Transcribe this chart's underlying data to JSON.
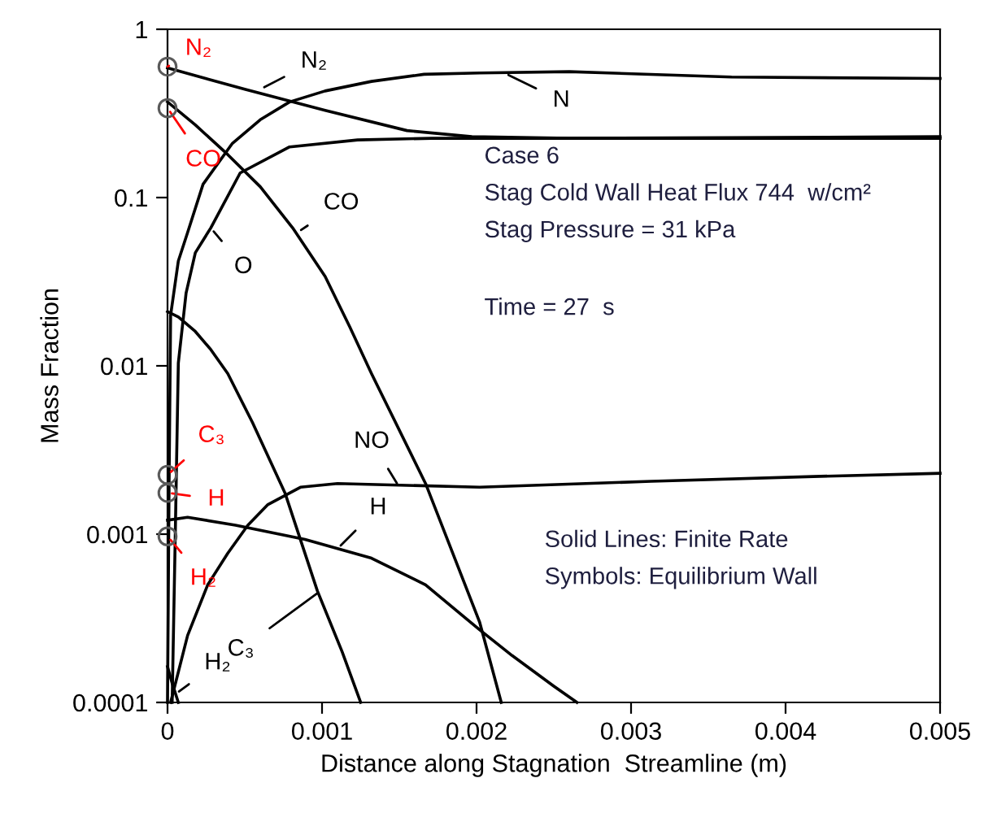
{
  "chart_data": {
    "type": "line",
    "xlabel": "Distance along Stagnation  Streamline (m)",
    "ylabel": "Mass Fraction",
    "log": "y",
    "xlim": [
      0,
      0.005
    ],
    "ylim": [
      0.0001,
      1
    ],
    "xticks": [
      0,
      0.001,
      0.002,
      0.003,
      0.004,
      0.005
    ],
    "yticks": [
      0.0001,
      0.001,
      0.01,
      0.1,
      1
    ],
    "grid": false,
    "legend": false,
    "marker": "none",
    "line_style": "solid",
    "series": [
      {
        "color": "#000000",
        "x": [
          0,
          1e-05,
          2e-05,
          7e-05,
          0.00013,
          0.00023,
          0.00042,
          0.0006,
          0.00079,
          0.00102,
          0.00132,
          0.00166,
          0.00202,
          0.0026,
          0.00365,
          0.005
        ],
        "values": [
          0.0001,
          0.0019,
          0.02,
          0.042,
          0.062,
          0.12,
          0.21,
          0.29,
          0.37,
          0.43,
          0.49,
          0.54,
          0.55,
          0.56,
          0.52,
          0.51
        ]
      },
      {
        "color": "#000000",
        "x": [
          3e-05,
          5e-05,
          7e-05,
          0.00012,
          0.00018,
          0.00028,
          0.00047,
          0.00079,
          0.00123,
          0.00171,
          0.005
        ],
        "values": [
          0.0001,
          0.00097,
          0.0104,
          0.027,
          0.047,
          0.066,
          0.14,
          0.2,
          0.22,
          0.225,
          0.225
        ]
      },
      {
        "color": "#000000",
        "x": [
          0,
          0.0005,
          0.00102,
          0.00155,
          0.00197,
          0.0026,
          0.005
        ],
        "values": [
          0.59,
          0.44,
          0.33,
          0.25,
          0.23,
          0.225,
          0.23
        ]
      },
      {
        "color": "#000000",
        "x": [
          0,
          0.00018,
          0.00039,
          0.0006,
          0.00081,
          0.00102,
          0.00118,
          0.00132,
          0.00167,
          0.00202,
          0.00216
        ],
        "values": [
          0.37,
          0.27,
          0.18,
          0.116,
          0.066,
          0.034,
          0.017,
          0.009,
          0.002,
          0.0003,
          0.0001
        ]
      },
      {
        "color": "#000000",
        "x": [
          0,
          7e-05,
          0.00018,
          0.00028,
          0.00039,
          0.00055,
          0.00076,
          0.00097,
          0.00113,
          0.00125
        ],
        "values": [
          0.021,
          0.0195,
          0.016,
          0.0125,
          0.009,
          0.0046,
          0.00176,
          0.00046,
          0.0002,
          0.0001
        ]
      },
      {
        "color": "#000000",
        "x": [
          0,
          0.00013,
          0.00044,
          0.00089,
          0.00132,
          0.00167,
          0.00202,
          0.00223,
          0.0025,
          0.00265
        ],
        "values": [
          0.00121,
          0.00126,
          0.00113,
          0.00093,
          0.00072,
          0.0005,
          0.00027,
          0.00019,
          0.000125,
          0.0001
        ]
      },
      {
        "color": "#000000",
        "x": [
          2e-05,
          0.00013,
          0.00026,
          0.00039,
          0.00052,
          0.00065,
          0.00086,
          0.0011,
          0.00202,
          0.00313,
          0.00418,
          0.005
        ],
        "values": [
          0.0001,
          0.00025,
          0.0005,
          0.00077,
          0.00113,
          0.0015,
          0.0019,
          0.002,
          0.0019,
          0.00206,
          0.0022,
          0.0023
        ]
      },
      {
        "color": "#000000",
        "x": [
          0,
          3e-05,
          7e-05
        ],
        "values": [
          0.000163,
          0.00013,
          0.0001
        ]
      },
      {
        "type": "scatter",
        "marker": "circle",
        "color": "#595959",
        "x": [
          0,
          0,
          0,
          0,
          0
        ],
        "values": [
          0.6,
          0.34,
          0.00225,
          0.00176,
          0.00097
        ]
      }
    ],
    "annotations": [
      {
        "text": "N₂",
        "x": 0,
        "y": 0.6
      },
      {
        "text": "CO",
        "x": 0,
        "y": 0.34
      },
      {
        "text": "C₃",
        "x": 0,
        "y": 0.00225
      },
      {
        "text": "H",
        "x": 0,
        "y": 0.00176
      },
      {
        "text": "H₂",
        "x": 0,
        "y": 0.00097
      },
      {
        "text": "N₂",
        "x": 0.0006,
        "y": 0.44
      },
      {
        "text": "N",
        "x": 0.00218,
        "y": 0.55
      },
      {
        "text": "CO",
        "x": 0.00084,
        "y": 0.062
      },
      {
        "text": "O",
        "x": 0.00028,
        "y": 0.066
      },
      {
        "text": "NO",
        "x": 0.0015,
        "y": 0.0019
      },
      {
        "text": "H",
        "x": 0.0011,
        "y": 0.00082
      },
      {
        "text": "C₃",
        "x": 0.00099,
        "y": 0.00046
      },
      {
        "text": "H₂",
        "x": 5e-05,
        "y": 0.000112
      },
      "Case 6",
      "Stag Cold Wall Heat Flux 744  w/cm²",
      "Stag Pressure = 31 kPa",
      "Time = 27  s",
      "Solid Lines: Finite Rate",
      "Symbols: Equilibrium Wall"
    ]
  }
}
